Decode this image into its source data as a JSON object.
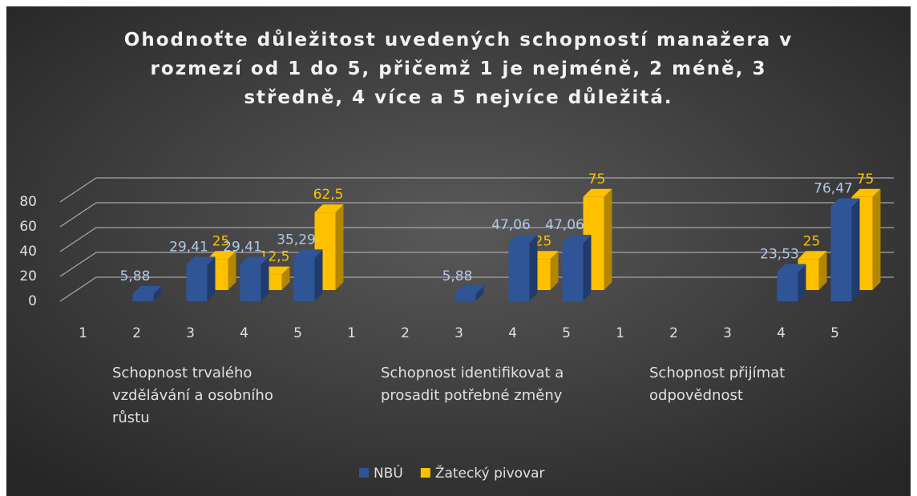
{
  "chart_data": {
    "type": "bar3d",
    "title": "Ohodnoťte důležitost uvedených schopností manažera v rozmezí od 1 do 5, přičemž 1 je nejméně, 2 méně, 3 středně, 4 více a 5 nejvíce důležitá.",
    "categories": [
      "1",
      "2",
      "3",
      "4",
      "5",
      "1",
      "2",
      "3",
      "4",
      "5",
      "1",
      "2",
      "3",
      "4",
      "5"
    ],
    "category_groups": [
      "Schopnost trvalého vzdělávání a osobního růstu",
      "Schopnost identifikovat a prosadit potřebné změny",
      "Schopnost přijímat odpovědnost"
    ],
    "series": [
      {
        "name": "NBÚ",
        "color": "#2f5597",
        "values": [
          null,
          5.88,
          29.41,
          29.41,
          35.29,
          null,
          null,
          5.88,
          47.06,
          47.06,
          null,
          null,
          null,
          23.53,
          76.47
        ],
        "value_labels": [
          null,
          "5,88",
          "29,41",
          "29,41",
          "35,29",
          null,
          null,
          "5,88",
          "47,06",
          "47,06",
          null,
          null,
          null,
          "23,53",
          "76,47"
        ]
      },
      {
        "name": "Žatecký pivovar",
        "color": "#ffc000",
        "values": [
          null,
          null,
          25,
          12.5,
          62.5,
          null,
          null,
          null,
          25,
          75,
          null,
          null,
          null,
          25,
          75
        ],
        "value_labels": [
          null,
          null,
          "25",
          "12,5",
          "62,5",
          null,
          null,
          null,
          "25",
          "75",
          null,
          null,
          null,
          "25",
          "75"
        ]
      }
    ],
    "ylim": [
      0,
      80
    ],
    "yticks": [
      0,
      20,
      40,
      60,
      80
    ],
    "grid": true,
    "legend": "bottom"
  }
}
